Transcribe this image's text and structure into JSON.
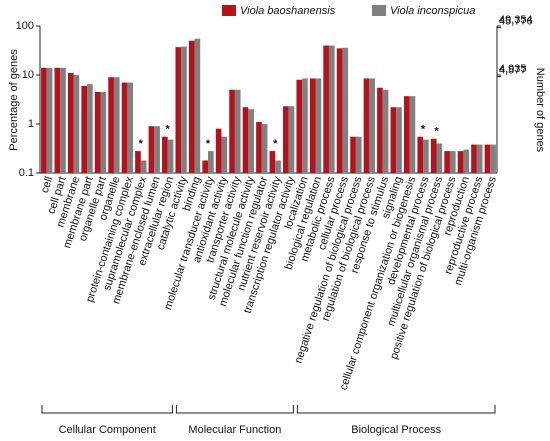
{
  "chart_data": {
    "type": "bar",
    "log_scale": true,
    "y_label": "Percentage of genes",
    "y2_label": "Number of genes",
    "categories": [
      "cell",
      "cell part",
      "membrane",
      "membrane part",
      "organelle part",
      "organelle",
      "protein-containing complex",
      "supramolecular complex",
      "membrane-enclosed lumen",
      "extracellular region",
      "catalytic activity",
      "binding",
      "molecular transducer activity",
      "antioxidant activity",
      "transporter activity",
      "structural molecule activity",
      "molecular function regulator",
      "nutrient reservoir activity",
      "transcription regulator activity",
      "localization",
      "biological regulation",
      "metabolic process",
      "cellular process",
      "negative regulation of biological process",
      "regulation of biological process",
      "response to stimulus",
      "signaling",
      "cellular component organization or biogenesis",
      "developmental process",
      "multicellular organismal process",
      "positive regulation of biological process",
      "reproduction",
      "reproductive process",
      "multi-organism process"
    ],
    "series": [
      {
        "name": "Viola baoshanensis",
        "color": "#b5121b",
        "values": [
          14,
          14,
          11,
          6,
          4.5,
          9,
          7,
          0.28,
          0.9,
          0.55,
          37,
          50,
          0.18,
          0.8,
          5,
          2.2,
          1.1,
          0.28,
          2.3,
          8,
          8.5,
          40,
          35,
          0.55,
          8.5,
          5.5,
          2.2,
          3.7,
          0.55,
          0.5,
          0.28,
          0.28,
          0.38,
          0.38
        ]
      },
      {
        "name": "Viola inconspicua",
        "color": "#808080",
        "values": [
          14,
          14,
          10,
          6.5,
          4.5,
          9,
          7,
          0.18,
          0.9,
          0.48,
          38,
          55,
          0.28,
          0.55,
          5,
          2,
          1,
          0.18,
          2.3,
          8.5,
          8.5,
          40,
          36,
          0.55,
          8.5,
          5,
          2.2,
          3.7,
          0.48,
          0.4,
          0.28,
          0.3,
          0.38,
          0.38
        ]
      }
    ],
    "significance": [
      null,
      null,
      null,
      null,
      null,
      null,
      null,
      "*",
      null,
      "*",
      null,
      null,
      "*",
      null,
      null,
      null,
      null,
      "*",
      null,
      null,
      null,
      null,
      null,
      null,
      null,
      null,
      null,
      null,
      "*",
      "*",
      null,
      null,
      null,
      null
    ],
    "ylim": [
      0.1,
      100
    ],
    "yticks": [
      0.1,
      1,
      10,
      100
    ],
    "y2lim": [
      49.354,
      49354
    ],
    "y2ticks": [
      {
        "value": 49354,
        "label": "49,354"
      },
      {
        "value": 45776,
        "label": "45,776"
      },
      {
        "value": 4935,
        "label": "4,935"
      },
      {
        "value": 4577,
        "label": "4,577"
      }
    ],
    "groups": [
      {
        "name": "Cellular Component",
        "span": [
          0,
          9
        ]
      },
      {
        "name": "Molecular Function",
        "span": [
          10,
          18
        ]
      },
      {
        "name": "Biological Process",
        "span": [
          19,
          33
        ]
      }
    ]
  }
}
